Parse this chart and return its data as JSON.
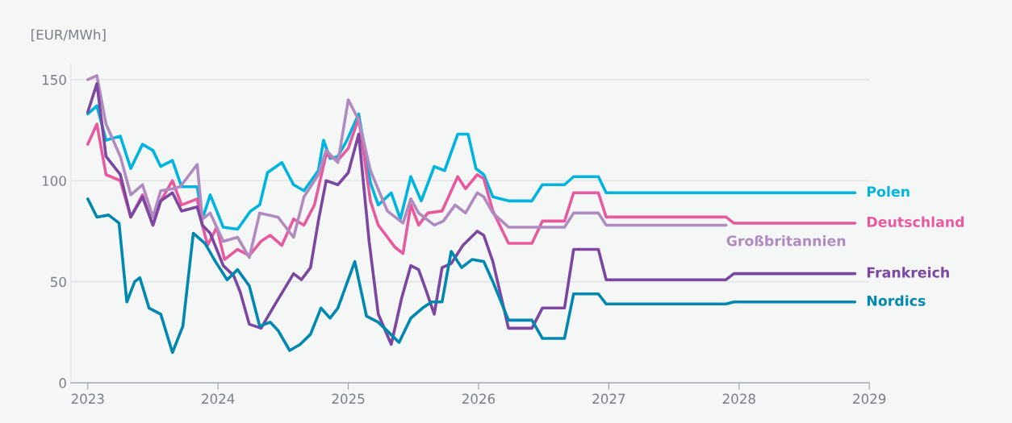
{
  "chart_data": {
    "type": "line",
    "ylabel": "[EUR/MWh]",
    "xlim": [
      2022.87,
      2029
    ],
    "xticks": [
      2023,
      2024,
      2025,
      2026,
      2027,
      2028,
      2029
    ],
    "ylim": [
      0,
      158
    ],
    "yticks": [
      0,
      50,
      100,
      150
    ],
    "grid": "y",
    "legend": false,
    "marker": "none",
    "line_style": "solid",
    "series": [
      {
        "name": "Polen",
        "color": "#00b4e0",
        "x": [
          2023.0,
          2023.07,
          2023.14,
          2023.25,
          2023.33,
          2023.42,
          2023.5,
          2023.56,
          2023.65,
          2023.72,
          2023.84,
          2023.88,
          2023.94,
          2024.04,
          2024.15,
          2024.25,
          2024.32,
          2024.38,
          2024.49,
          2024.58,
          2024.66,
          2024.77,
          2024.81,
          2024.86,
          2024.92,
          2024.99,
          2025.08,
          2025.17,
          2025.23,
          2025.33,
          2025.4,
          2025.48,
          2025.56,
          2025.66,
          2025.74,
          2025.84,
          2025.92,
          2025.98,
          2026.04,
          2026.11,
          2026.23,
          2026.41,
          2026.49,
          2026.66,
          2026.73,
          2026.92,
          2026.98,
          2028.89
        ],
        "values": [
          133,
          137,
          120,
          122,
          106,
          118,
          115,
          107,
          110,
          97,
          97,
          81,
          93,
          77,
          76,
          85,
          88,
          104,
          109,
          98,
          95,
          105,
          120,
          111,
          112,
          120,
          133,
          99,
          88,
          94,
          81,
          102,
          90,
          107,
          105,
          123,
          123,
          106,
          103,
          92,
          90,
          90,
          98,
          98,
          102,
          102,
          94,
          94
        ]
      },
      {
        "name": "Deutschland",
        "color": "#e85a9f",
        "x": [
          2023.0,
          2023.07,
          2023.14,
          2023.25,
          2023.33,
          2023.42,
          2023.5,
          2023.56,
          2023.65,
          2023.72,
          2023.84,
          2023.88,
          2023.92,
          2023.99,
          2024.05,
          2024.15,
          2024.24,
          2024.33,
          2024.4,
          2024.49,
          2024.58,
          2024.66,
          2024.74,
          2024.83,
          2024.92,
          2025.0,
          2025.08,
          2025.17,
          2025.23,
          2025.36,
          2025.42,
          2025.48,
          2025.54,
          2025.61,
          2025.72,
          2025.84,
          2025.9,
          2025.99,
          2026.04,
          2026.11,
          2026.23,
          2026.41,
          2026.49,
          2026.66,
          2026.73,
          2026.92,
          2026.98,
          2027.9,
          2027.96,
          2028.89
        ],
        "values": [
          118,
          128,
          103,
          100,
          82,
          93,
          78,
          90,
          100,
          88,
          91,
          78,
          68,
          77,
          61,
          66,
          63,
          70,
          73,
          68,
          81,
          78,
          88,
          113,
          110,
          116,
          131,
          90,
          78,
          67,
          64,
          88,
          78,
          84,
          85,
          102,
          96,
          103,
          101,
          85,
          69,
          69,
          80,
          80,
          94,
          94,
          82,
          82,
          79,
          79
        ]
      },
      {
        "name": "Großbritannien",
        "color": "#b08bc0",
        "x": [
          2023.0,
          2023.07,
          2023.14,
          2023.25,
          2023.33,
          2023.42,
          2023.5,
          2023.56,
          2023.65,
          2023.71,
          2023.84,
          2023.88,
          2023.94,
          2024.04,
          2024.15,
          2024.24,
          2024.32,
          2024.46,
          2024.58,
          2024.66,
          2024.77,
          2024.83,
          2024.92,
          2025.0,
          2025.08,
          2025.17,
          2025.3,
          2025.42,
          2025.48,
          2025.54,
          2025.66,
          2025.73,
          2025.82,
          2025.9,
          2025.99,
          2026.04,
          2026.11,
          2026.23,
          2026.66,
          2026.73,
          2026.92,
          2026.98,
          2027.9
        ],
        "values": [
          150,
          152,
          128,
          112,
          93,
          98,
          82,
          95,
          96,
          97,
          108,
          81,
          84,
          70,
          72,
          62,
          84,
          82,
          72,
          92,
          103,
          115,
          109,
          140,
          130,
          105,
          85,
          79,
          91,
          84,
          78,
          80,
          88,
          84,
          94,
          92,
          84,
          77,
          77,
          84,
          84,
          78,
          78
        ]
      },
      {
        "name": "Frankreich",
        "color": "#7b47a0",
        "x": [
          2023.0,
          2023.07,
          2023.14,
          2023.25,
          2023.33,
          2023.42,
          2023.5,
          2023.56,
          2023.65,
          2023.72,
          2023.84,
          2023.88,
          2023.94,
          2024.04,
          2024.12,
          2024.17,
          2024.24,
          2024.33,
          2024.43,
          2024.58,
          2024.64,
          2024.71,
          2024.77,
          2024.83,
          2024.92,
          2025.0,
          2025.08,
          2025.16,
          2025.23,
          2025.33,
          2025.41,
          2025.48,
          2025.54,
          2025.59,
          2025.66,
          2025.72,
          2025.79,
          2025.88,
          2025.99,
          2026.04,
          2026.11,
          2026.23,
          2026.41,
          2026.49,
          2026.66,
          2026.73,
          2026.92,
          2026.98,
          2027.9,
          2027.96,
          2028.89
        ],
        "values": [
          134,
          148,
          112,
          103,
          82,
          92,
          78,
          90,
          94,
          85,
          87,
          78,
          74,
          58,
          53,
          45,
          29,
          27,
          38,
          54,
          51,
          57,
          80,
          100,
          98,
          104,
          123,
          70,
          34,
          19,
          42,
          58,
          56,
          47,
          34,
          57,
          59,
          68,
          75,
          73,
          60,
          27,
          27,
          37,
          37,
          66,
          66,
          51,
          51,
          54,
          54
        ]
      },
      {
        "name": "Nordics",
        "color": "#0088b0",
        "x": [
          2023.0,
          2023.07,
          2023.16,
          2023.24,
          2023.3,
          2023.36,
          2023.4,
          2023.47,
          2023.56,
          2023.65,
          2023.73,
          2023.81,
          2023.9,
          2023.98,
          2024.07,
          2024.15,
          2024.24,
          2024.32,
          2024.4,
          2024.46,
          2024.55,
          2024.63,
          2024.71,
          2024.79,
          2024.86,
          2024.92,
          2025.05,
          2025.14,
          2025.23,
          2025.31,
          2025.39,
          2025.48,
          2025.57,
          2025.64,
          2025.72,
          2025.79,
          2025.87,
          2025.95,
          2026.04,
          2026.11,
          2026.23,
          2026.41,
          2026.49,
          2026.66,
          2026.73,
          2026.92,
          2026.98,
          2027.9,
          2027.96,
          2028.89
        ],
        "values": [
          91,
          82,
          83,
          79,
          40,
          50,
          52,
          37,
          34,
          15,
          28,
          74,
          69,
          60,
          51,
          56,
          48,
          28,
          30,
          26,
          16,
          19,
          24,
          37,
          32,
          37,
          60,
          33,
          30,
          25,
          20,
          32,
          37,
          40,
          40,
          65,
          57,
          61,
          60,
          50,
          31,
          31,
          22,
          22,
          44,
          44,
          39,
          39,
          40,
          40
        ]
      }
    ]
  }
}
